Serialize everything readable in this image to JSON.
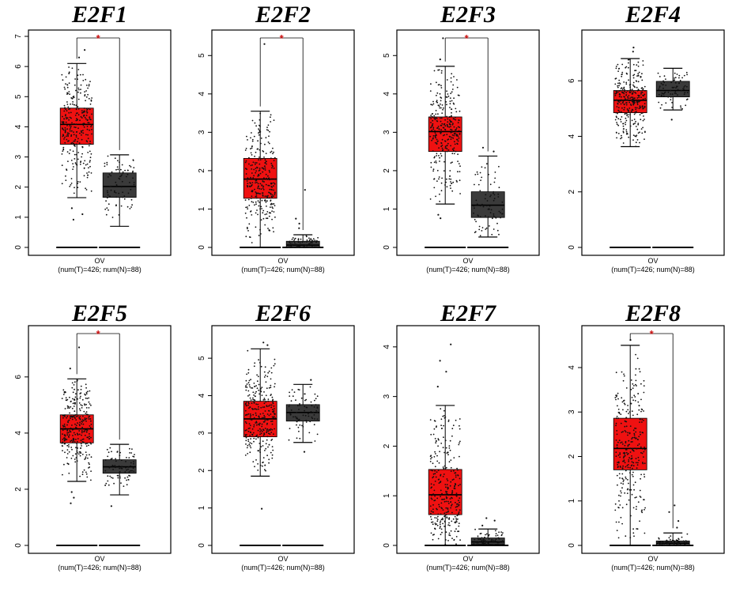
{
  "colors": {
    "tumor": "#ef1111",
    "normal": "#3a3a3a",
    "significance": "#cc1111",
    "points": "#111111"
  },
  "chart_data": [
    {
      "type": "box",
      "title": "E2F1",
      "xlabel": "OV",
      "sublabel": "(num(T)=426; num(N)=88)",
      "ylim": [
        0,
        7
      ],
      "yticks": [
        0,
        1,
        2,
        3,
        4,
        5,
        6,
        7
      ],
      "significant": true,
      "significance_marker": "*",
      "series": [
        {
          "name": "Tumor",
          "n": 426,
          "color": "tumor",
          "min": 1.65,
          "q1": 3.42,
          "median": 4.08,
          "q3": 4.62,
          "max": 6.1,
          "outliers": [
            0.92,
            1.1,
            1.3,
            6.3,
            6.55
          ]
        },
        {
          "name": "Normal",
          "n": 88,
          "color": "normal",
          "min": 0.7,
          "q1": 1.66,
          "median": 2.02,
          "q3": 2.47,
          "max": 3.07,
          "outliers": []
        }
      ]
    },
    {
      "type": "box",
      "title": "E2F2",
      "xlabel": "OV",
      "sublabel": "(num(T)=426; num(N)=88)",
      "ylim": [
        0,
        5.5
      ],
      "yticks": [
        0,
        1,
        2,
        3,
        4,
        5
      ],
      "significant": true,
      "significance_marker": "*",
      "series": [
        {
          "name": "Tumor",
          "n": 426,
          "color": "tumor",
          "min": 0.0,
          "q1": 1.28,
          "median": 1.78,
          "q3": 2.32,
          "max": 3.55,
          "outliers": [
            5.3
          ]
        },
        {
          "name": "Normal",
          "n": 88,
          "color": "normal",
          "min": 0.0,
          "q1": 0.0,
          "median": 0.06,
          "q3": 0.16,
          "max": 0.33,
          "outliers": [
            0.5,
            0.62,
            0.75,
            1.5
          ]
        }
      ]
    },
    {
      "type": "box",
      "title": "E2F3",
      "xlabel": "OV",
      "sublabel": "(num(T)=426; num(N)=88)",
      "ylim": [
        0,
        5.5
      ],
      "yticks": [
        0,
        1,
        2,
        3,
        4,
        5
      ],
      "significant": true,
      "significance_marker": "*",
      "series": [
        {
          "name": "Tumor",
          "n": 426,
          "color": "tumor",
          "min": 1.13,
          "q1": 2.5,
          "median": 3.02,
          "q3": 3.4,
          "max": 4.72,
          "outliers": [
            0.76,
            0.85,
            4.9,
            5.45
          ]
        },
        {
          "name": "Normal",
          "n": 88,
          "color": "normal",
          "min": 0.27,
          "q1": 0.78,
          "median": 1.1,
          "q3": 1.45,
          "max": 2.38,
          "outliers": [
            2.5,
            2.6
          ]
        }
      ]
    },
    {
      "type": "box",
      "title": "E2F4",
      "xlabel": "OV",
      "sublabel": "(num(T)=426; num(N)=88)",
      "ylim": [
        0,
        7.6
      ],
      "yticks": [
        0,
        2,
        4,
        6
      ],
      "significant": false,
      "significance_marker": "",
      "series": [
        {
          "name": "Tumor",
          "n": 426,
          "color": "tumor",
          "min": 3.63,
          "q1": 4.85,
          "median": 5.3,
          "q3": 5.65,
          "max": 6.8,
          "outliers": [
            7.05,
            7.2
          ]
        },
        {
          "name": "Normal",
          "n": 88,
          "color": "normal",
          "min": 4.95,
          "q1": 5.42,
          "median": 5.65,
          "q3": 5.98,
          "max": 6.45,
          "outliers": [
            4.6
          ]
        }
      ]
    },
    {
      "type": "box",
      "title": "E2F5",
      "xlabel": "OV",
      "sublabel": "(num(T)=426; num(N)=88)",
      "ylim": [
        0,
        7.6
      ],
      "yticks": [
        0,
        2,
        4,
        6
      ],
      "significant": true,
      "significance_marker": "*",
      "series": [
        {
          "name": "Tumor",
          "n": 426,
          "color": "tumor",
          "min": 2.28,
          "q1": 3.65,
          "median": 4.15,
          "q3": 4.65,
          "max": 5.93,
          "outliers": [
            1.5,
            1.7,
            1.9,
            6.3,
            7.05
          ]
        },
        {
          "name": "Normal",
          "n": 88,
          "color": "normal",
          "min": 1.8,
          "q1": 2.57,
          "median": 2.8,
          "q3": 3.05,
          "max": 3.6,
          "outliers": [
            1.4
          ]
        }
      ]
    },
    {
      "type": "box",
      "title": "E2F6",
      "xlabel": "OV",
      "sublabel": "(num(T)=426; num(N)=88)",
      "ylim": [
        0,
        5.7
      ],
      "yticks": [
        0,
        1,
        2,
        3,
        4,
        5
      ],
      "significant": false,
      "significance_marker": "",
      "series": [
        {
          "name": "Tumor",
          "n": 426,
          "color": "tumor",
          "min": 1.85,
          "q1": 2.9,
          "median": 3.38,
          "q3": 3.85,
          "max": 5.25,
          "outliers": [
            0.98,
            5.35,
            5.42
          ]
        },
        {
          "name": "Normal",
          "n": 88,
          "color": "normal",
          "min": 2.75,
          "q1": 3.32,
          "median": 3.55,
          "q3": 3.76,
          "max": 4.3,
          "outliers": [
            2.5,
            4.42
          ]
        }
      ]
    },
    {
      "type": "box",
      "title": "E2F7",
      "xlabel": "OV",
      "sublabel": "(num(T)=426; num(N)=88)",
      "ylim": [
        0,
        4.3
      ],
      "yticks": [
        0,
        1,
        2,
        3,
        4
      ],
      "significant": false,
      "significance_marker": "",
      "series": [
        {
          "name": "Tumor",
          "n": 426,
          "color": "tumor",
          "min": 0.0,
          "q1": 0.62,
          "median": 1.02,
          "q3": 1.53,
          "max": 2.82,
          "outliers": [
            3.2,
            3.5,
            3.72,
            4.05
          ]
        },
        {
          "name": "Normal",
          "n": 88,
          "color": "normal",
          "min": 0.0,
          "q1": 0.02,
          "median": 0.07,
          "q3": 0.15,
          "max": 0.33,
          "outliers": [
            0.4,
            0.5,
            0.55
          ]
        }
      ]
    },
    {
      "type": "box",
      "title": "E2F8",
      "xlabel": "OV",
      "sublabel": "(num(T)=426; num(N)=88)",
      "ylim": [
        0,
        4.8
      ],
      "yticks": [
        0,
        1,
        2,
        3,
        4
      ],
      "significant": true,
      "significance_marker": "*",
      "series": [
        {
          "name": "Tumor",
          "n": 426,
          "color": "tumor",
          "min": 0.0,
          "q1": 1.7,
          "median": 2.18,
          "q3": 2.86,
          "max": 4.5,
          "outliers": [
            4.62
          ]
        },
        {
          "name": "Normal",
          "n": 88,
          "color": "normal",
          "min": 0.0,
          "q1": 0.0,
          "median": 0.05,
          "q3": 0.1,
          "max": 0.28,
          "outliers": [
            0.4,
            0.55,
            0.75,
            0.9
          ]
        }
      ]
    }
  ]
}
